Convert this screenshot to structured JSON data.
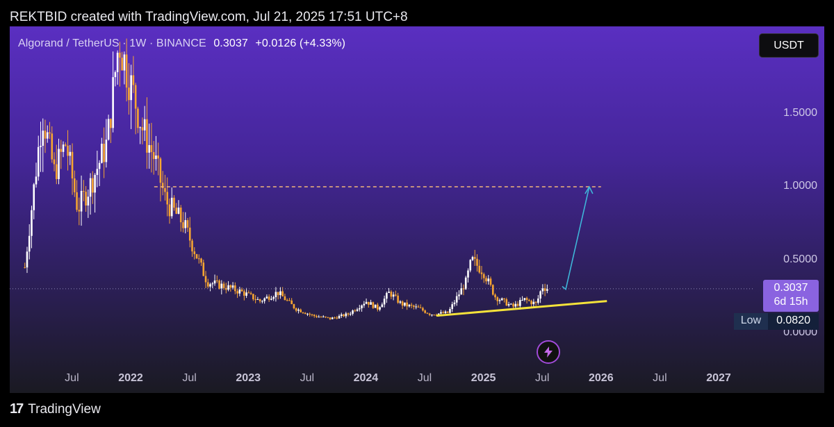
{
  "caption": "REKTBID created with TradingView.com, Jul 21, 2025 17:51 UTC+8",
  "legend": {
    "pair": "Algorand / TetherUS · 1W · BINANCE",
    "price": "0.3037",
    "change": "+0.0126 (+4.33%)"
  },
  "currency_button": "USDT",
  "price_tag": {
    "price": "0.3037",
    "countdown": "6d 15h"
  },
  "low_tag": {
    "label": "Low",
    "value": "0.0820"
  },
  "brand": {
    "logo": "17",
    "name": "TradingView"
  },
  "icons": {
    "flash": "lightning-icon",
    "logo": "tradingview-logo-icon"
  },
  "colors": {
    "up_candle": "#ffffff",
    "down_candle": "#f7a531",
    "resistance": "#f2b37a",
    "support": "#f4e23a",
    "projection": "#3fb6d9"
  },
  "chart_data": {
    "type": "candlestick",
    "x_ticks": [
      "Jul",
      "2022",
      "Jul",
      "2023",
      "Jul",
      "2024",
      "Jul",
      "2025",
      "Jul",
      "2026",
      "Jul",
      "2027"
    ],
    "y_ticks": [
      "1.5000",
      "1.0000",
      "0.5000",
      "0.0000"
    ],
    "y_tick_values": [
      1.5,
      1.0,
      0.5,
      0.0
    ],
    "ylim": [
      -0.1,
      2.0
    ],
    "xlim": [
      2021.1,
      2027.6
    ],
    "last_price": 0.3037,
    "low": 0.082,
    "price_path": [
      [
        2021.1,
        0.45
      ],
      [
        2021.25,
        1.5
      ],
      [
        2021.35,
        1.1
      ],
      [
        2021.45,
        1.3
      ],
      [
        2021.55,
        0.85
      ],
      [
        2021.65,
        1.0
      ],
      [
        2021.8,
        1.3
      ],
      [
        2021.9,
        2.0
      ],
      [
        2022.0,
        1.7
      ],
      [
        2022.1,
        1.4
      ],
      [
        2022.2,
        1.2
      ],
      [
        2022.3,
        0.9
      ],
      [
        2022.45,
        0.75
      ],
      [
        2022.55,
        0.55
      ],
      [
        2022.65,
        0.35
      ],
      [
        2022.8,
        0.32
      ],
      [
        2022.95,
        0.28
      ],
      [
        2023.1,
        0.22
      ],
      [
        2023.25,
        0.28
      ],
      [
        2023.4,
        0.17
      ],
      [
        2023.55,
        0.12
      ],
      [
        2023.7,
        0.1
      ],
      [
        2023.85,
        0.13
      ],
      [
        2024.0,
        0.22
      ],
      [
        2024.1,
        0.17
      ],
      [
        2024.2,
        0.28
      ],
      [
        2024.3,
        0.2
      ],
      [
        2024.45,
        0.17
      ],
      [
        2024.55,
        0.13
      ],
      [
        2024.7,
        0.14
      ],
      [
        2024.85,
        0.35
      ],
      [
        2024.9,
        0.5
      ],
      [
        2025.0,
        0.42
      ],
      [
        2025.1,
        0.25
      ],
      [
        2025.25,
        0.18
      ],
      [
        2025.35,
        0.23
      ],
      [
        2025.45,
        0.2
      ],
      [
        2025.5,
        0.32
      ],
      [
        2025.55,
        0.3037
      ]
    ],
    "annotations": [
      {
        "type": "resistance",
        "y": 1.0,
        "x_start": 2022.2,
        "x_end": 2026.0
      },
      {
        "type": "support",
        "points": [
          [
            2024.6,
            0.12
          ],
          [
            2026.05,
            0.22
          ]
        ]
      },
      {
        "type": "projection",
        "points": [
          [
            2025.67,
            0.32
          ],
          [
            2025.7,
            0.3
          ],
          [
            2025.9,
            1.0
          ]
        ]
      }
    ]
  }
}
